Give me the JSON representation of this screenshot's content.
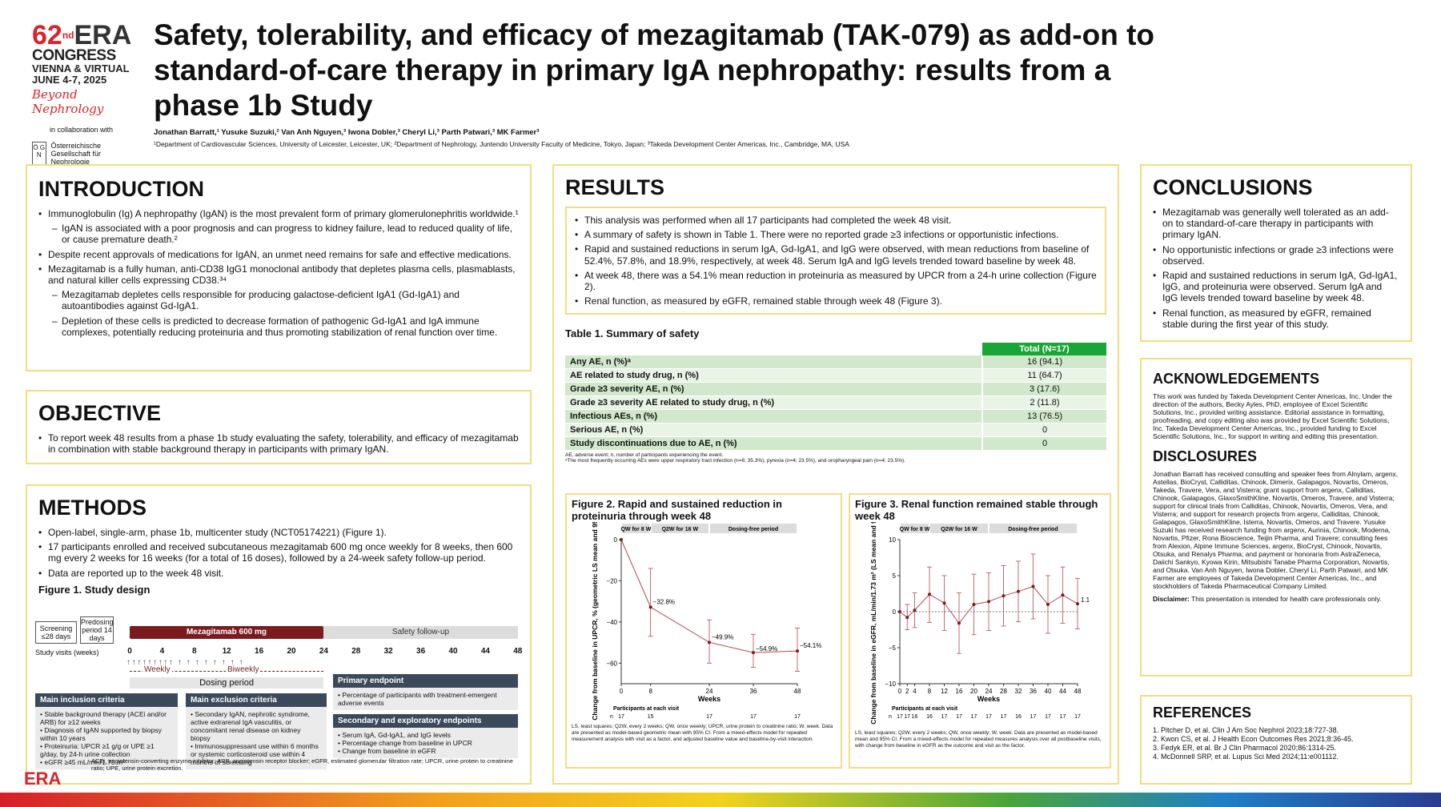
{
  "logo": {
    "num": "62",
    "sup": "nd",
    "era": "ERA",
    "congress": "CONGRESS",
    "location": "VIENNA & VIRTUAL",
    "dates": "JUNE 4-7, 2025",
    "tagline": "Beyond Nephrology",
    "collab": "in collaboration with",
    "oegn_mark": "Ö G N",
    "oegn_name": "Österreichische Gesellschaft für Nephrologie"
  },
  "header": {
    "title": "Safety, tolerability, and efficacy of mezagitamab (TAK-079) as add-on to standard-of-care therapy in primary IgA nephropathy: results from a phase 1b Study",
    "authors": "Jonathan Barratt,¹ Yusuke Suzuki,² Van Anh Nguyen,³ Iwona Dobler,³ Cheryl Li,³ Parth Patwari,³ MK Farmer³",
    "affiliations": "¹Department of Cardiovascular Sciences, University of Leicester, Leicester, UK; ²Department of Nephrology, Juntendo University Faculty of Medicine, Tokyo, Japan; ³Takeda Development Center Americas, Inc., Cambridge, MA, USA"
  },
  "introduction": {
    "heading": "INTRODUCTION",
    "bullets": [
      {
        "text": "Immunoglobulin (Ig) A nephropathy (IgAN) is the most prevalent form of primary glomerulonephritis worldwide.¹",
        "sub": false
      },
      {
        "text": "IgAN is associated with a poor prognosis and can progress to kidney failure, lead to reduced quality of life, or cause premature death.²",
        "sub": true
      },
      {
        "text": "Despite recent approvals of medications for IgAN, an unmet need remains for safe and effective medications.",
        "sub": false
      },
      {
        "text": "Mezagitamab is a fully human, anti-CD38 IgG1 monoclonal antibody that depletes plasma cells, plasmablasts, and natural killer cells expressing CD38.³⁴",
        "sub": false
      },
      {
        "text": "Mezagitamab depletes cells responsible for producing galactose-deficient IgA1 (Gd-IgA1) and autoantibodies against Gd-IgA1.",
        "sub": true
      },
      {
        "text": "Depletion of these cells is predicted to decrease formation of pathogenic Gd-IgA1 and IgA immune complexes, potentially reducing proteinuria and thus promoting stabilization of renal function over time.",
        "sub": true
      }
    ]
  },
  "objective": {
    "heading": "OBJECTIVE",
    "bullets": [
      "To report week 48 results from a phase 1b study evaluating the safety, tolerability, and efficacy of mezagitamab in combination with stable background therapy in participants with primary IgAN."
    ]
  },
  "methods": {
    "heading": "METHODS",
    "bullets": [
      "Open-label, single-arm, phase 1b, multicenter study (NCT05174221) (Figure 1).",
      "17 participants enrolled and received subcutaneous mezagitamab 600 mg once weekly for 8 weeks, then 600 mg every 2 weeks for 16 weeks (for a total of 16 doses), followed by a 24-week safety follow-up period.",
      "Data are reported up to the week 48 visit."
    ],
    "fig1_title": "Figure 1. Study design",
    "screening": "Screening ≤28 days",
    "predosing": "Predosing period 14 days",
    "drug_label": "Mezagitamab 600 mg",
    "followup_label": "Safety follow-up",
    "study_visits_label": "Study visits (weeks)",
    "visits": [
      "0",
      "4",
      "8",
      "12",
      "16",
      "20",
      "24",
      "28",
      "32",
      "36",
      "40",
      "44",
      "48"
    ],
    "weekly": "Weekly",
    "biweekly": "Biweekly",
    "dosing_period": "Dosing period",
    "inclusion_title": "Main inclusion criteria",
    "inclusion": [
      "Stable background therapy (ACEi and/or ARB) for ≥12 weeks",
      "Diagnosis of IgAN supported by biopsy within 10 years",
      "Proteinuria: UPCR ≥1 g/g or UPE ≥1 g/day, by 24-h urine collection",
      "eGFR ≥45 mL/min/1.73 m²"
    ],
    "exclusion_title": "Main exclusion criteria",
    "exclusion": [
      "Secondary IgAN, nephrotic syndrome, active extrarenal IgA vasculitis, or concomitant renal disease on kidney biopsy",
      "Immunosuppressant use within 6 months or systemic corticosteroid use within 4 months of screening"
    ],
    "primary_title": "Primary endpoint",
    "primary": [
      "Percentage of participants with treatment-emergent adverse events"
    ],
    "secondary_title": "Secondary and exploratory endpoints",
    "secondary": [
      "Serum IgA, Gd-IgA1, and IgG levels",
      "Percentage change from baseline in UPCR",
      "Change from baseline in eGFR"
    ],
    "footnote": "ACEi, angiotensin-converting enzyme inhibitor; ARB, angiotensin receptor blocker; eGFR, estimated glomerular filtration rate; UPCR, urine protein to creatinine ratio; UPE, urine protein excretion."
  },
  "results": {
    "heading": "RESULTS",
    "bullets": [
      "This analysis was performed when all 17 participants had completed the week 48 visit.",
      "A summary of safety is shown in Table 1. There were no reported grade ≥3 infections or opportunistic infections.",
      "Rapid and sustained reductions in serum IgA, Gd-IgA1, and IgG were observed, with mean reductions from baseline of 52.4%, 57.8%, and 18.9%, respectively, at week 48. Serum IgA and IgG levels trended toward baseline by week 48.",
      "At week 48, there was a 54.1% mean reduction in proteinuria as measured by UPCR from a 24-h urine collection (Figure 2).",
      "Renal function, as measured by eGFR, remained stable through week 48 (Figure 3)."
    ],
    "table_title": "Table 1. Summary of safety",
    "table_col": "Total (N=17)",
    "table_rows": [
      {
        "label": "Any AE, n (%)ᵃ",
        "value": "16 (94.1)"
      },
      {
        "label": "AE related to study drug, n (%)",
        "value": "11 (64.7)"
      },
      {
        "label": "Grade ≥3 severity AE, n (%)",
        "value": "3 (17.6)"
      },
      {
        "label": "Grade ≥3 severity AE related to study drug, n (%)",
        "value": "2 (11.8)"
      },
      {
        "label": "Infectious AEs, n (%)",
        "value": "13 (76.5)"
      },
      {
        "label": "Serious AE, n (%)",
        "value": "0"
      },
      {
        "label": "Study discontinuations due to AE, n (%)",
        "value": "0"
      }
    ],
    "table_note1": "AE, adverse event; n, number of participants experiencing the event.",
    "table_note2": "ᵃThe most frequently occurring AEs were upper respiratory tract infection (n=6; 35.3%), pyrexia (n=4; 23.5%), and oropharyngeal pain (n=4; 23.5%).",
    "fig2_title": "Figure 2. Rapid and sustained reduction in proteinuria through week 48",
    "fig2_note": "LS, least squares; Q2W, every 2 weeks; QW, once weekly; UPCR, urine protein to creatinine ratio; W, week. Data are presented as model-based geometric mean with 95% CI. From a mixed-effects model for repeated measurement analysis with visit as a factor, and adjusted baseline value and baseline-by-visit interaction.",
    "fig3_title": "Figure 3. Renal function remained stable through week 48",
    "fig3_note": "LS, least squares; Q2W, every 2 weeks; QW, once weekly; W, week. Data are presented as model-based mean and 95% CI. From a mixed-effects model for repeated measures analysis over all postbaseline visits, with change from baseline in eGFR as the outcome and visit as the factor.",
    "phase_qw": "QW for 8 W",
    "phase_q2w": "Q2W for 16 W",
    "phase_free": "Dosing-free period",
    "participants_label": "Participants at each visit",
    "n_label": "n"
  },
  "chart_data": [
    {
      "type": "line",
      "title": "Figure 2. Rapid and sustained reduction in proteinuria through week 48",
      "xlabel": "Weeks",
      "ylabel": "Change from baseline in UPCR, % (geometric LS mean and 95% CI)",
      "x": [
        0,
        8,
        24,
        36,
        48
      ],
      "y": [
        0,
        -32.8,
        -49.9,
        -54.9,
        -54.1
      ],
      "ci_low": [
        0,
        -47,
        -60,
        -62,
        -64
      ],
      "ci_high": [
        0,
        -14,
        -39,
        -46,
        -43
      ],
      "labels": [
        "",
        "−32.8%",
        "−49.9%",
        "−54.9%",
        "−54.1%"
      ],
      "xticks": [
        "0",
        "8",
        "24",
        "36",
        "48"
      ],
      "yticks": [
        "0",
        "−20",
        "−40",
        "−60"
      ],
      "ylim": [
        -70,
        0
      ],
      "xlim": [
        0,
        48
      ],
      "n": [
        "17",
        "15",
        "17",
        "17",
        "17"
      ]
    },
    {
      "type": "line",
      "title": "Figure 3. Renal function remained stable through week 48",
      "xlabel": "Weeks",
      "ylabel": "Change from baseline in eGFR, mL/min/1.73 m² (LS mean and 95% CI)",
      "x": [
        0,
        2,
        4,
        8,
        12,
        16,
        20,
        24,
        28,
        32,
        36,
        40,
        44,
        48
      ],
      "y": [
        0,
        -0.8,
        0.2,
        2.4,
        1.2,
        -1.6,
        1.0,
        1.4,
        2.2,
        2.8,
        3.5,
        1.0,
        2.3,
        1.1
      ],
      "ci_low": [
        0,
        -2.5,
        -2.2,
        -1.5,
        -2.6,
        -5.8,
        -3.2,
        -2.6,
        -2.0,
        -1.4,
        -1.0,
        -3.0,
        -1.6,
        -2.4
      ],
      "ci_high": [
        0,
        1.0,
        2.6,
        6.2,
        5.0,
        2.6,
        5.2,
        5.4,
        6.4,
        7.0,
        8.0,
        5.0,
        6.2,
        4.6
      ],
      "end_label": "1.1",
      "xticks": [
        "0",
        "2",
        "4",
        "8",
        "12",
        "16",
        "20",
        "24",
        "28",
        "32",
        "36",
        "40",
        "44",
        "48"
      ],
      "yticks": [
        "10",
        "5",
        "0",
        "−5",
        "−10"
      ],
      "ylim": [
        -10,
        10
      ],
      "xlim": [
        0,
        48
      ],
      "n": [
        "17",
        "17",
        "16",
        "16",
        "17",
        "17",
        "17",
        "17",
        "17",
        "16",
        "17",
        "17",
        "17",
        "17"
      ]
    }
  ],
  "conclusions": {
    "heading": "CONCLUSIONS",
    "bullets": [
      "Mezagitamab was generally well tolerated as an add-on to standard-of-care therapy in participants with primary IgAN.",
      "No opportunistic infections or grade ≥3 infections were observed.",
      "Rapid and sustained reductions in serum IgA, Gd-IgA1, IgG, and proteinuria were observed. Serum IgA and IgG levels trended toward baseline by week 48.",
      "Renal function, as measured by eGFR, remained stable during the first year of this study."
    ]
  },
  "acknowledgements": {
    "heading": "ACKNOWLEDGEMENTS",
    "text": "This work was funded by Takeda Development Center Americas, Inc. Under the direction of the authors, Becky Ayles, PhD, employee of Excel Scientific Solutions, Inc., provided writing assistance. Editorial assistance in formatting, proofreading, and copy editing also was provided by Excel Scientific Solutions, Inc. Takeda Development Center Americas, Inc., provided funding to Excel Scientific Solutions, Inc., for support in writing and editing this presentation."
  },
  "disclosures": {
    "heading": "DISCLOSURES",
    "text": "Jonathan Barratt has received consulting and speaker fees from Alnylam, argenx, Astellas, BioCryst, Calliditas, Chinook, Dimerix, Galapagos, Novartis, Omeros, Takeda, Travere, Vera, and Visterra; grant support from argenx, Calliditas, Chinook, Galapagos, GlaxoSmithKline, Novartis, Omeros, Travere, and Visterra; support for clinical trials from Calliditas, Chinook, Novartis, Omeros, Vera, and Visterra; and support for research projects from argenx, Calliditas, Chinook, Galapagos, GlaxoSmithKline, Isterra, Novartis, Omeros, and Travere. Yusuke Suzuki has received research funding from argenx, Aurinia, Chinook, Moderna, Novartis, Pfizer, Rona Bioscience, Teijin Pharma, and Travere; consulting fees from Alexion, Alpine Immune Sciences, argenx, BioCryst, Chinook, Novartis, Otsuka, and Renalys Pharma; and payment or honoraria from AstraZeneca, Daiichi Sankyo, Kyowa Kirin, Mitsubishi Tanabe Pharma Corporation, Novartis, and Otsuka. Van Anh Nguyen, Iwona Dobler, Cheryl Li, Parth Patwari, and MK Farmer are employees of Takeda Development Center Americas, Inc., and stockholders of Takeda Pharmaceutical Company Limited.",
    "disclaimer_label": "Disclaimer:",
    "disclaimer": " This presentation is intended for health care professionals only."
  },
  "references": {
    "heading": "REFERENCES",
    "items": [
      "1. Pitcher D, et al. Clin J Am Soc Nephrol 2023;18:727-38.",
      "2. Kwon CS, et al. J Health Econ Outcomes Res 2021;8:36-45.",
      "3. Fedyk ER, et al. Br J Clin Pharmacol 2020;86:1314-25.",
      "4. McDonnell SRP, et al. Lupus Sci Med 2024;11:e001112."
    ]
  },
  "footer": {
    "era": "ERA"
  }
}
